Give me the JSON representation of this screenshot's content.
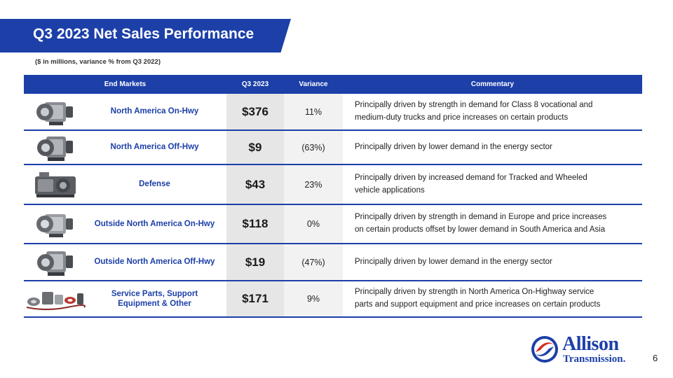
{
  "header": {
    "title": "Q3 2023 Net Sales Performance",
    "subtitle": "($ in millions, variance % from Q3 2022)"
  },
  "table": {
    "columns": {
      "end_markets": "End Markets",
      "q3": "Q3 2023",
      "variance": "Variance",
      "commentary": "Commentary"
    },
    "rows": [
      {
        "market": "North America On-Hwy",
        "q3": "$376",
        "variance": "11%",
        "commentary_l1": "Principally driven by strength in demand for Class 8 vocational and",
        "commentary_l2": "medium-duty trucks and price increases on certain products",
        "icon": "transmission-icon"
      },
      {
        "market": "North America Off-Hwy",
        "q3": "$9",
        "variance": "(63%)",
        "commentary_l1": "Principally driven by lower demand in the energy sector",
        "commentary_l2": "",
        "icon": "transmission-icon"
      },
      {
        "market": "Defense",
        "q3": "$43",
        "variance": "23%",
        "commentary_l1": "Principally driven by increased demand for Tracked and Wheeled",
        "commentary_l2": "vehicle applications",
        "icon": "defense-transmission-icon"
      },
      {
        "market": "Outside North America On-Hwy",
        "q3": "$118",
        "variance": "0%",
        "commentary_l1": "Principally driven by strength in demand in Europe and price increases",
        "commentary_l2": "on certain products offset by lower demand in South America and Asia",
        "icon": "transmission-icon"
      },
      {
        "market": "Outside North America Off-Hwy",
        "q3": "$19",
        "variance": "(47%)",
        "commentary_l1": "Principally driven by lower demand in the energy sector",
        "commentary_l2": "",
        "icon": "transmission-icon"
      },
      {
        "market_l1": "Service Parts, Support",
        "market_l2": "Equipment & Other",
        "q3": "$171",
        "variance": "9%",
        "commentary_l1": "Principally driven by strength in North America On-Highway service",
        "commentary_l2": "parts and support equipment and price increases on certain products",
        "icon": "service-parts-icon"
      }
    ]
  },
  "logo": {
    "word1": "Allison",
    "word2": "Transmission."
  },
  "page_number": "6",
  "colors": {
    "brand_blue": "#1c3fa8",
    "brand_red": "#d52b1e"
  }
}
